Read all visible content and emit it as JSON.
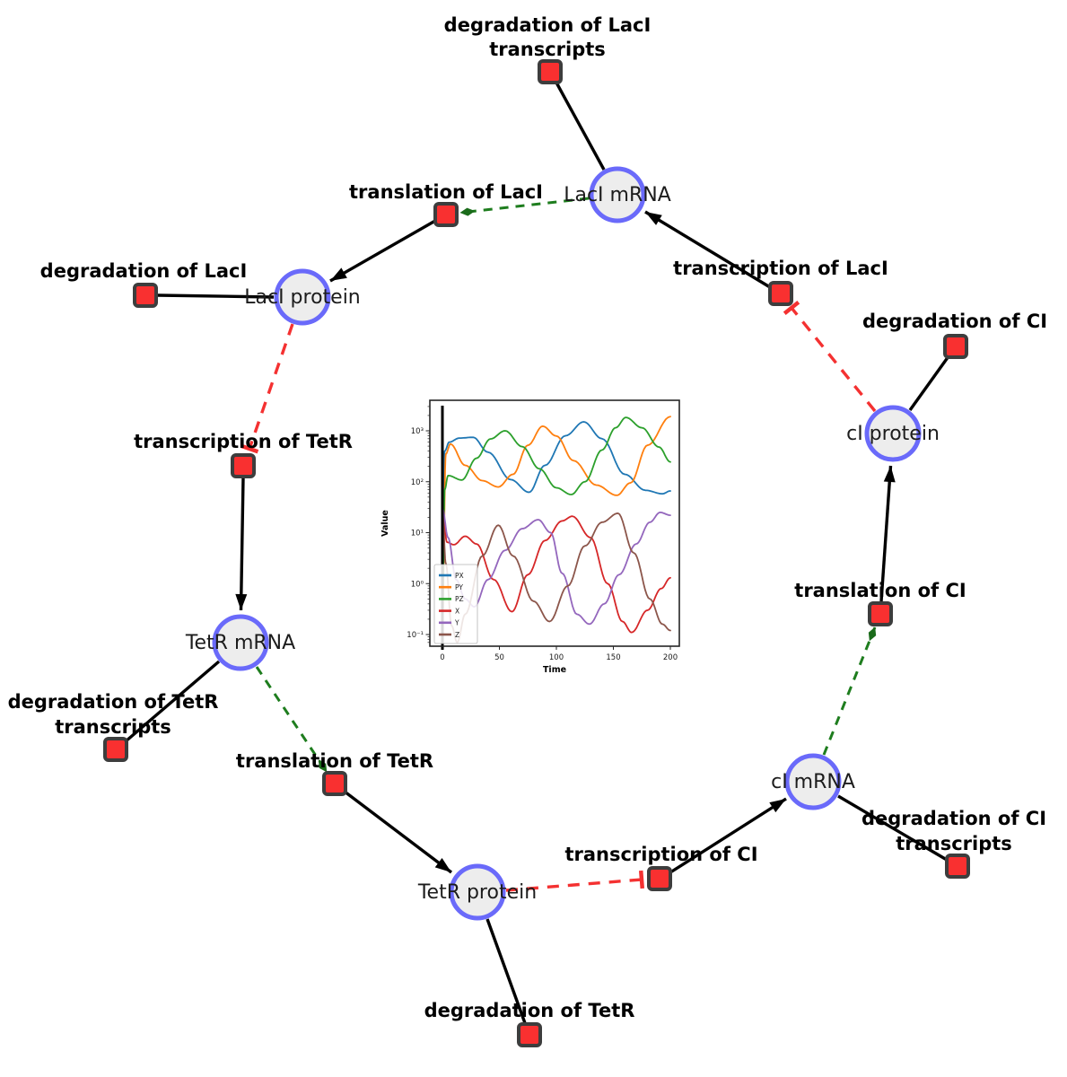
{
  "network": {
    "species": [
      {
        "label": "LacI mRNA"
      },
      {
        "label": "LacI protein"
      },
      {
        "label": "TetR mRNA"
      },
      {
        "label": "TetR protein"
      },
      {
        "label": "cI mRNA"
      },
      {
        "label": "cI protein"
      }
    ],
    "reactions": [
      {
        "label": "degradation of LacI transcripts",
        "lines": [
          "degradation of LacI",
          "transcripts"
        ]
      },
      {
        "label": "translation of LacI",
        "lines": [
          "translation of LacI"
        ]
      },
      {
        "label": "transcription of LacI",
        "lines": [
          "transcription of LacI"
        ]
      },
      {
        "label": "degradation of LacI",
        "lines": [
          "degradation of LacI"
        ]
      },
      {
        "label": "degradation of CI",
        "lines": [
          "degradation of CI"
        ]
      },
      {
        "label": "transcription of TetR",
        "lines": [
          "transcription of TetR"
        ]
      },
      {
        "label": "degradation of TetR transcripts",
        "lines": [
          "degradation of TetR",
          "transcripts"
        ]
      },
      {
        "label": "translation of TetR",
        "lines": [
          "translation of TetR"
        ]
      },
      {
        "label": "degradation of TetR",
        "lines": [
          "degradation of TetR"
        ]
      },
      {
        "label": "transcription of CI",
        "lines": [
          "transcription of CI"
        ]
      },
      {
        "label": "degradation of CI transcripts",
        "lines": [
          "degradation of CI",
          "transcripts"
        ]
      },
      {
        "label": "translation of CI",
        "lines": [
          "translation of CI"
        ]
      }
    ],
    "colors": {
      "species_fill": "#ededed",
      "species_border": "#6a6afa",
      "reaction_fill": "#f93030",
      "reaction_border": "#3d3d3d",
      "activation_edge_green": "#1e7d1e",
      "inhibition_edge_red": "#f43131",
      "default_edge": "#000000"
    }
  },
  "chart_data": {
    "type": "line",
    "title": "",
    "xlabel": "Time",
    "ylabel": "Value",
    "x_scale": "linear",
    "y_scale": "log",
    "xlim": [
      -9,
      209
    ],
    "ylim": [
      0.059,
      4000
    ],
    "x_ticks": [
      0,
      50,
      100,
      150,
      200
    ],
    "x_tick_labels": [
      "0",
      "50",
      "100",
      "150",
      "200"
    ],
    "y_ticks": [
      0.1,
      1,
      10,
      100,
      1000
    ],
    "y_tick_labels": [
      "10⁻¹",
      "10⁰",
      "10¹",
      "10²",
      "10³"
    ],
    "grid": false,
    "legend_position": "lower left",
    "annotations": [
      {
        "type": "vline",
        "x": 0,
        "color": "#000000"
      }
    ],
    "series": [
      {
        "name": "PX",
        "color": "#1f77b4",
        "keypoints": [
          [
            0,
            0.2
          ],
          [
            2,
            400
          ],
          [
            6,
            600
          ],
          [
            15,
            720
          ],
          [
            27,
            745
          ],
          [
            40,
            380
          ],
          [
            60,
            110
          ],
          [
            76,
            62
          ],
          [
            90,
            210
          ],
          [
            108,
            800
          ],
          [
            124,
            1500
          ],
          [
            140,
            700
          ],
          [
            160,
            140
          ],
          [
            178,
            68
          ],
          [
            193,
            58
          ],
          [
            200,
            66
          ]
        ]
      },
      {
        "name": "PY",
        "color": "#ff7f0e",
        "keypoints": [
          [
            0,
            0.2
          ],
          [
            3,
            350
          ],
          [
            7,
            550
          ],
          [
            20,
            210
          ],
          [
            35,
            105
          ],
          [
            49,
            79
          ],
          [
            62,
            140
          ],
          [
            75,
            520
          ],
          [
            88,
            1230
          ],
          [
            100,
            790
          ],
          [
            115,
            260
          ],
          [
            135,
            86
          ],
          [
            153,
            54
          ],
          [
            165,
            95
          ],
          [
            180,
            520
          ],
          [
            200,
            1900
          ]
        ]
      },
      {
        "name": "PZ",
        "color": "#2ca02c",
        "keypoints": [
          [
            0,
            0.2
          ],
          [
            2,
            70
          ],
          [
            5,
            132
          ],
          [
            17,
            108
          ],
          [
            30,
            290
          ],
          [
            42,
            690
          ],
          [
            55,
            1000
          ],
          [
            70,
            490
          ],
          [
            85,
            180
          ],
          [
            100,
            76
          ],
          [
            113,
            56
          ],
          [
            125,
            100
          ],
          [
            140,
            420
          ],
          [
            152,
            1150
          ],
          [
            161,
            1830
          ],
          [
            175,
            1150
          ],
          [
            190,
            480
          ],
          [
            200,
            245
          ]
        ]
      },
      {
        "name": "X",
        "color": "#d62728",
        "keypoints": [
          [
            0,
            28
          ],
          [
            4,
            6.5
          ],
          [
            10,
            5.8
          ],
          [
            20,
            8.5
          ],
          [
            30,
            6
          ],
          [
            45,
            1.2
          ],
          [
            61,
            0.28
          ],
          [
            75,
            1.5
          ],
          [
            90,
            7
          ],
          [
            105,
            17
          ],
          [
            114,
            21
          ],
          [
            130,
            8
          ],
          [
            145,
            1
          ],
          [
            158,
            0.18
          ],
          [
            166,
            0.11
          ],
          [
            180,
            0.3
          ],
          [
            192,
            0.8
          ],
          [
            200,
            1.3
          ]
        ]
      },
      {
        "name": "Y",
        "color": "#9467bd",
        "keypoints": [
          [
            0,
            30
          ],
          [
            5,
            8
          ],
          [
            12,
            1.2
          ],
          [
            20,
            0.5
          ],
          [
            28,
            0.35
          ],
          [
            40,
            1.2
          ],
          [
            55,
            4.5
          ],
          [
            70,
            12
          ],
          [
            84,
            18
          ],
          [
            95,
            10
          ],
          [
            105,
            1.6
          ],
          [
            118,
            0.25
          ],
          [
            129,
            0.16
          ],
          [
            142,
            0.4
          ],
          [
            155,
            1.5
          ],
          [
            170,
            6
          ],
          [
            182,
            16
          ],
          [
            191,
            25
          ],
          [
            200,
            22
          ]
        ]
      },
      {
        "name": "Z",
        "color": "#8c564b",
        "keypoints": [
          [
            0,
            25
          ],
          [
            3,
            2.5
          ],
          [
            8,
            0.15
          ],
          [
            13,
            0.07
          ],
          [
            20,
            0.25
          ],
          [
            35,
            3.5
          ],
          [
            49,
            14
          ],
          [
            62,
            3.5
          ],
          [
            80,
            0.45
          ],
          [
            94,
            0.18
          ],
          [
            110,
            0.9
          ],
          [
            125,
            5.5
          ],
          [
            140,
            16
          ],
          [
            154,
            24
          ],
          [
            168,
            4
          ],
          [
            182,
            0.5
          ],
          [
            193,
            0.16
          ],
          [
            200,
            0.12
          ]
        ]
      }
    ]
  }
}
